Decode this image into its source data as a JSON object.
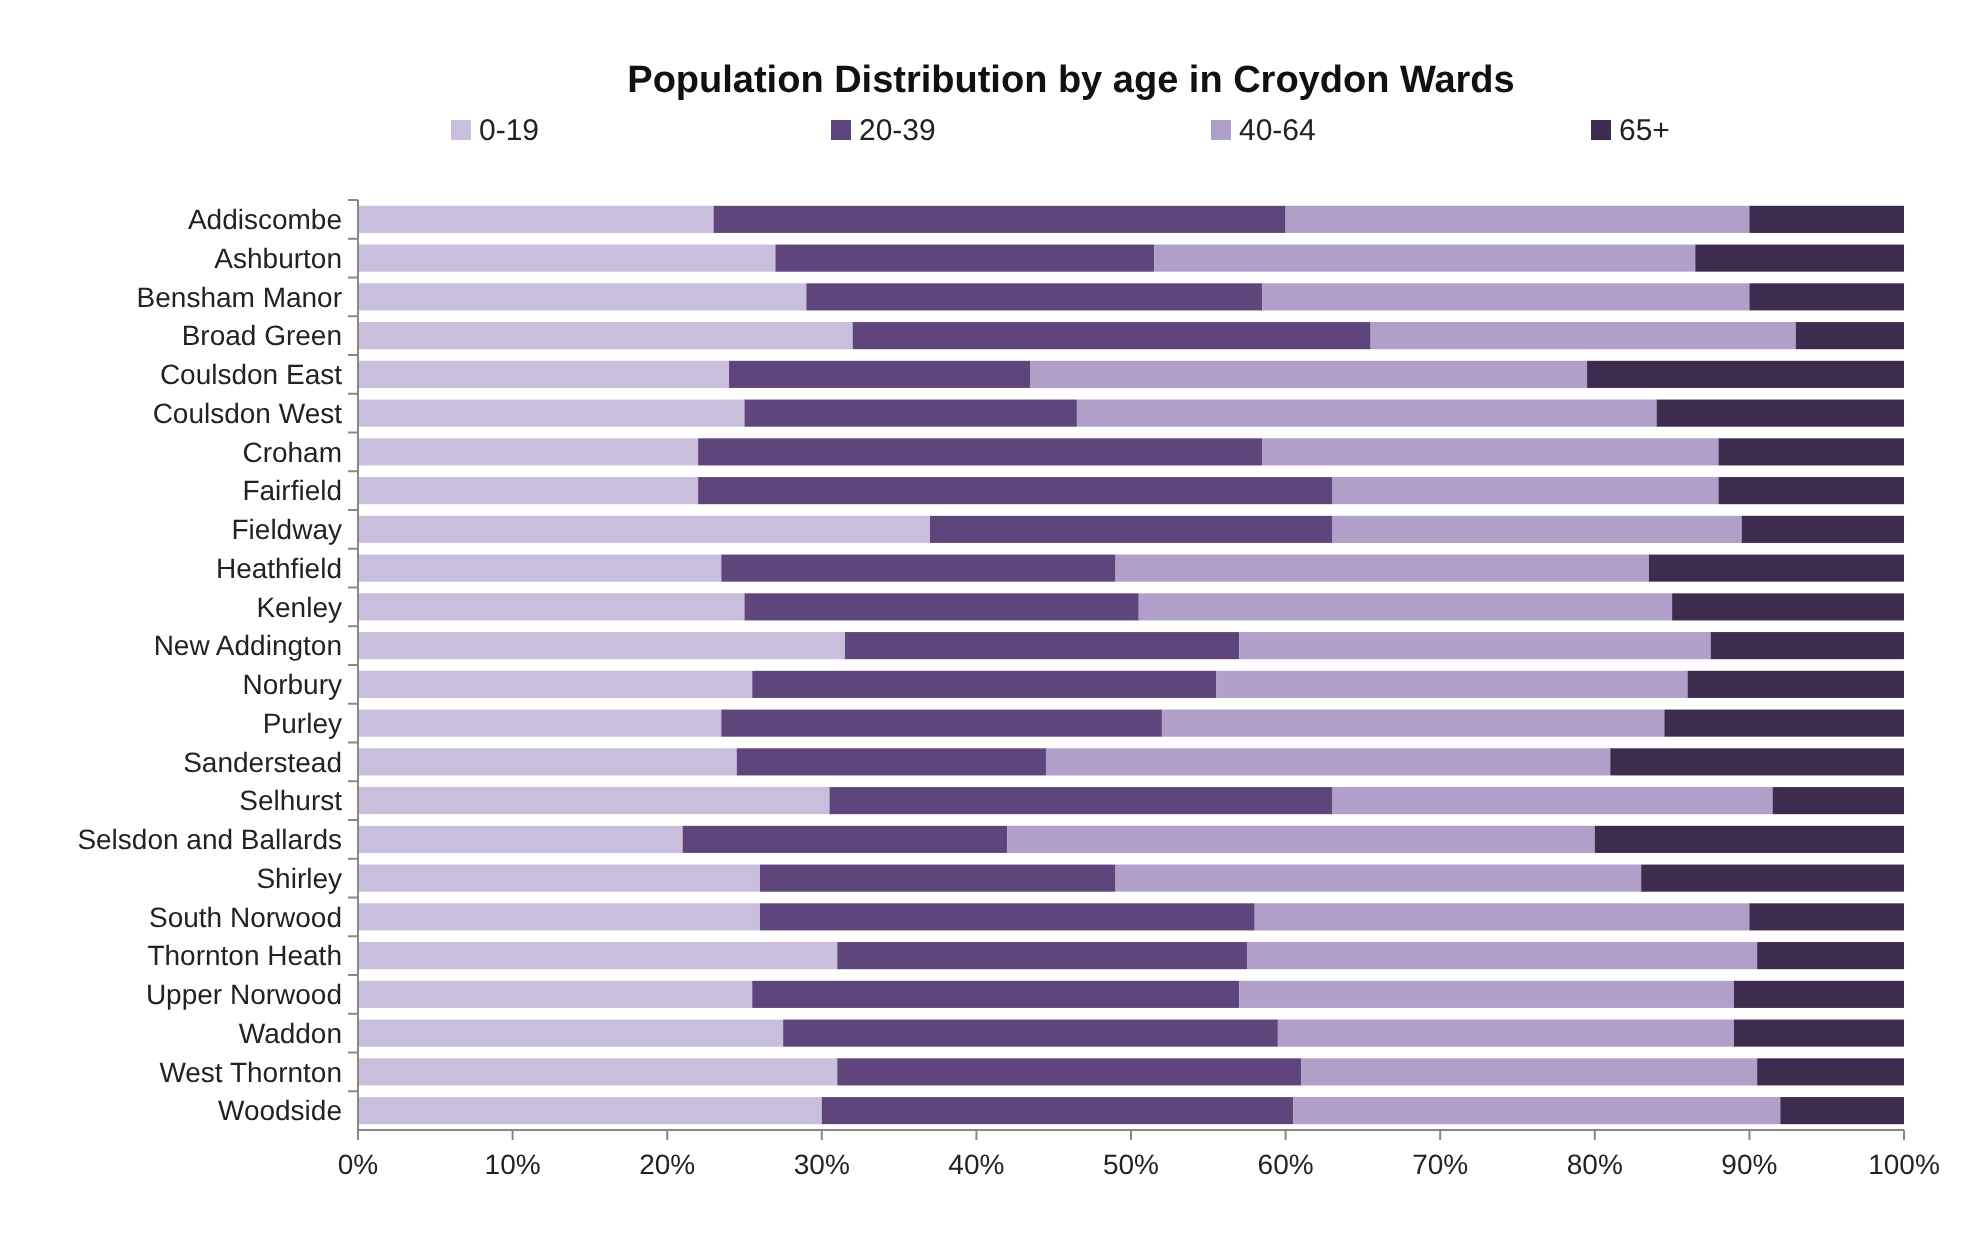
{
  "chart_data": {
    "type": "bar",
    "orientation": "horizontal",
    "stacked": true,
    "title": "Population Distribution by age in Croydon Wards",
    "legend": "top",
    "grid": false,
    "categories": [
      "Addiscombe",
      "Ashburton",
      "Bensham Manor",
      "Broad Green",
      "Coulsdon East",
      "Coulsdon West",
      "Croham",
      "Fairfield",
      "Fieldway",
      "Heathfield",
      "Kenley",
      "New Addington",
      "Norbury",
      "Purley",
      "Sanderstead",
      "Selhurst",
      "Selsdon and Ballards",
      "Shirley",
      "South Norwood",
      "Thornton Heath",
      "Upper Norwood",
      "Waddon",
      "West Thornton",
      "Woodside"
    ],
    "series": [
      {
        "name": "0-19",
        "color": "#c9bedb",
        "values": [
          23,
          27,
          29,
          32,
          24,
          25,
          22,
          22,
          37,
          23.5,
          25,
          31.5,
          25.5,
          23.5,
          24.5,
          30.5,
          21,
          26,
          26,
          31,
          25.5,
          27.5,
          31,
          30
        ]
      },
      {
        "name": "20-39",
        "color": "#5e467c",
        "values": [
          37,
          24.5,
          29.5,
          33.5,
          19.5,
          21.5,
          36.5,
          41,
          26,
          25.5,
          25.5,
          25.5,
          30,
          28.5,
          20,
          32.5,
          21,
          23,
          32,
          26.5,
          31.5,
          32,
          30,
          30.5
        ]
      },
      {
        "name": "40-64",
        "color": "#b09fc8",
        "values": [
          30,
          35,
          31.5,
          27.5,
          36,
          37.5,
          29.5,
          25,
          26.5,
          34.5,
          34.5,
          30.5,
          30.5,
          32.5,
          36.5,
          28.5,
          38,
          34,
          32,
          33,
          32,
          29.5,
          29.5,
          31.5
        ]
      },
      {
        "name": "65+",
        "color": "#3d2c4e",
        "values": [
          10,
          13.5,
          10,
          7,
          20.5,
          16,
          12,
          12,
          10.5,
          16.5,
          15,
          12.5,
          14,
          15.5,
          19,
          8.5,
          20,
          17,
          10,
          9.5,
          11,
          11,
          9.5,
          8
        ]
      }
    ],
    "xlim": [
      0,
      100
    ],
    "xticks": [
      {
        "value": 0,
        "label": "0%"
      },
      {
        "value": 10,
        "label": "10%"
      },
      {
        "value": 20,
        "label": "20%"
      },
      {
        "value": 30,
        "label": "30%"
      },
      {
        "value": 40,
        "label": "40%"
      },
      {
        "value": 50,
        "label": "50%"
      },
      {
        "value": 60,
        "label": "60%"
      },
      {
        "value": 70,
        "label": "70%"
      },
      {
        "value": 80,
        "label": "80%"
      },
      {
        "value": 90,
        "label": "90%"
      },
      {
        "value": 100,
        "label": "100%"
      }
    ]
  }
}
